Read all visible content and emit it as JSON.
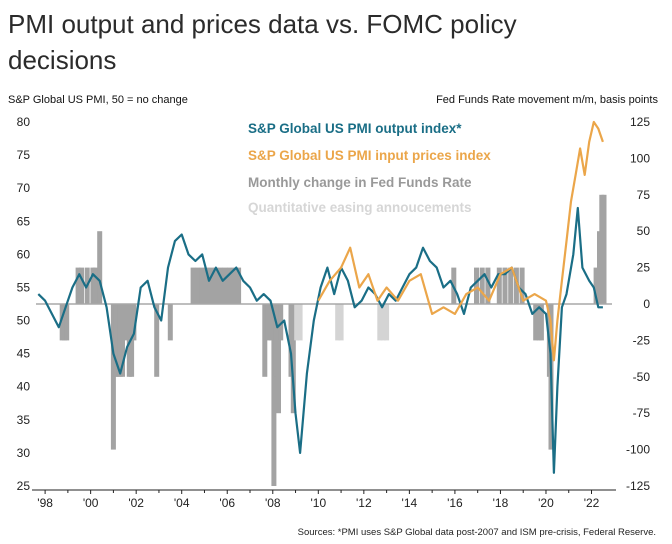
{
  "page": {
    "title": "PMI output and prices data vs. FOMC policy decisions",
    "left_axis_title": "S&P Global US PMI, 50 = no change",
    "right_axis_title": "Fed Funds Rate movement m/m, basis points",
    "source": "Sources: *PMI uses S&P Global data post-2007 and ISM pre-crisis, Federal Reserve."
  },
  "colors": {
    "output": "#1a6e86",
    "prices": "#eba64a",
    "fed": "#a3a3a3",
    "qe": "#d4d4d4",
    "zero_line": "#a8a8a8"
  },
  "chart_data": {
    "type": "line",
    "x_ticks": [
      "'98",
      "'00",
      "'02",
      "'04",
      "'06",
      "'08",
      "'10",
      "'12",
      "'14",
      "'16",
      "'18",
      "'20",
      "'22"
    ],
    "x_tick_years": [
      1998,
      2000,
      2002,
      2004,
      2006,
      2008,
      2010,
      2012,
      2014,
      2016,
      2018,
      2020,
      2022
    ],
    "xlim": [
      1997.6,
      2022.9
    ],
    "left_axis": {
      "ylim": [
        25,
        80
      ],
      "ticks": [
        "80",
        "75",
        "70",
        "65",
        "60",
        "55",
        "50",
        "45",
        "40",
        "35",
        "30",
        "25"
      ]
    },
    "right_axis": {
      "ylim": [
        -125,
        125
      ],
      "ticks": [
        "125",
        "100",
        "75",
        "50",
        "25",
        "0",
        "-25",
        "-50",
        "-75",
        "-100",
        "-125"
      ]
    },
    "series": [
      {
        "name": "S&P Global US PMI  output  index*",
        "axis": "left",
        "x": [
          1997.7,
          1998.0,
          1998.3,
          1998.6,
          1998.9,
          1999.2,
          1999.5,
          1999.8,
          2000.1,
          2000.4,
          2000.7,
          2001.0,
          2001.3,
          2001.6,
          2001.9,
          2002.2,
          2002.5,
          2002.8,
          2003.1,
          2003.4,
          2003.7,
          2004.0,
          2004.3,
          2004.6,
          2004.9,
          2005.2,
          2005.5,
          2005.8,
          2006.1,
          2006.4,
          2006.7,
          2007.0,
          2007.3,
          2007.6,
          2007.9,
          2008.2,
          2008.5,
          2008.8,
          2009.0,
          2009.2,
          2009.5,
          2009.8,
          2010.1,
          2010.4,
          2010.7,
          2011.0,
          2011.3,
          2011.6,
          2011.9,
          2012.2,
          2012.5,
          2012.8,
          2013.1,
          2013.4,
          2013.7,
          2014.0,
          2014.3,
          2014.6,
          2014.9,
          2015.2,
          2015.5,
          2015.8,
          2016.1,
          2016.4,
          2016.7,
          2017.0,
          2017.3,
          2017.6,
          2017.9,
          2018.2,
          2018.5,
          2018.8,
          2019.1,
          2019.4,
          2019.7,
          2020.0,
          2020.2,
          2020.35,
          2020.5,
          2020.7,
          2020.9,
          2021.2,
          2021.4,
          2021.6,
          2021.9,
          2022.1,
          2022.3,
          2022.5
        ],
        "values": [
          54,
          53,
          51,
          49,
          52,
          55,
          57,
          55,
          57,
          56,
          52,
          45,
          42,
          46,
          48,
          55,
          56,
          52,
          50,
          58,
          62,
          63,
          60,
          59,
          60,
          56,
          58,
          56,
          57,
          58,
          56,
          55,
          53,
          54,
          53,
          49,
          50,
          45,
          36,
          30,
          42,
          50,
          55,
          58,
          54,
          58,
          56,
          52,
          53,
          55,
          54,
          52,
          54,
          53,
          55,
          57,
          58,
          61,
          59,
          58,
          55,
          56,
          54,
          51,
          55,
          56,
          57,
          55,
          57,
          57,
          58,
          55,
          54,
          51,
          52,
          51,
          45,
          27,
          40,
          52,
          54,
          60,
          67,
          58,
          56,
          55,
          52,
          52
        ]
      },
      {
        "name": "S&P Global US PMI  input  prices index",
        "axis": "left",
        "x": [
          2010.0,
          2010.5,
          2011.0,
          2011.4,
          2011.8,
          2012.2,
          2012.6,
          2013.0,
          2013.5,
          2014.0,
          2014.5,
          2015.0,
          2015.5,
          2016.0,
          2016.5,
          2017.0,
          2017.5,
          2018.0,
          2018.5,
          2019.0,
          2019.5,
          2020.0,
          2020.2,
          2020.35,
          2020.5,
          2020.7,
          2020.9,
          2021.1,
          2021.3,
          2021.5,
          2021.7,
          2021.9,
          2022.1,
          2022.3,
          2022.5
        ],
        "values": [
          53,
          56,
          58,
          61,
          55,
          57,
          53,
          55,
          53,
          56,
          57,
          51,
          52,
          51,
          54,
          55,
          53,
          57,
          58,
          53,
          54,
          53,
          50,
          44,
          50,
          56,
          62,
          68,
          72,
          76,
          72,
          77,
          80,
          79,
          77
        ]
      }
    ],
    "bars": [
      {
        "name": "Monthly change in Fed Funds Rate",
        "axis": "right",
        "items": [
          {
            "x": 1998.75,
            "value": -25
          },
          {
            "x": 1998.85,
            "value": -25
          },
          {
            "x": 1998.95,
            "value": -25
          },
          {
            "x": 1999.45,
            "value": 25
          },
          {
            "x": 1999.6,
            "value": 25
          },
          {
            "x": 1999.85,
            "value": 25
          },
          {
            "x": 2000.1,
            "value": 25
          },
          {
            "x": 2000.2,
            "value": 25
          },
          {
            "x": 2000.4,
            "value": 50
          },
          {
            "x": 2001.0,
            "value": -100
          },
          {
            "x": 2001.1,
            "value": -50
          },
          {
            "x": 2001.2,
            "value": -50
          },
          {
            "x": 2001.3,
            "value": -50
          },
          {
            "x": 2001.4,
            "value": -50
          },
          {
            "x": 2001.5,
            "value": -25
          },
          {
            "x": 2001.7,
            "value": -50
          },
          {
            "x": 2001.8,
            "value": -50
          },
          {
            "x": 2001.9,
            "value": -25
          },
          {
            "x": 2002.9,
            "value": -50
          },
          {
            "x": 2003.5,
            "value": -25
          },
          {
            "x": 2004.5,
            "value": 25
          },
          {
            "x": 2004.7,
            "value": 25
          },
          {
            "x": 2004.9,
            "value": 25
          },
          {
            "x": 2005.1,
            "value": 25
          },
          {
            "x": 2005.3,
            "value": 25
          },
          {
            "x": 2005.5,
            "value": 25
          },
          {
            "x": 2005.7,
            "value": 25
          },
          {
            "x": 2005.9,
            "value": 25
          },
          {
            "x": 2006.1,
            "value": 25
          },
          {
            "x": 2006.3,
            "value": 25
          },
          {
            "x": 2006.5,
            "value": 25
          },
          {
            "x": 2007.65,
            "value": -50
          },
          {
            "x": 2007.8,
            "value": -25
          },
          {
            "x": 2007.95,
            "value": -25
          },
          {
            "x": 2008.05,
            "value": -125
          },
          {
            "x": 2008.15,
            "value": -50
          },
          {
            "x": 2008.25,
            "value": -75
          },
          {
            "x": 2008.35,
            "value": -25
          },
          {
            "x": 2008.8,
            "value": -50
          },
          {
            "x": 2008.9,
            "value": -75
          }
        ]
      },
      {
        "name": "Quantitative easing annoucements",
        "axis": "right",
        "items": [
          {
            "x": 2009.05,
            "value": -25
          },
          {
            "x": 2009.2,
            "value": -25
          },
          {
            "x": 2010.85,
            "value": -25
          },
          {
            "x": 2011.0,
            "value": -25
          },
          {
            "x": 2012.7,
            "value": -25
          },
          {
            "x": 2012.85,
            "value": -25
          },
          {
            "x": 2013.0,
            "value": -25
          }
        ]
      },
      {
        "name": "Monthly change in Fed Funds Rate",
        "axis": "right",
        "items": [
          {
            "x": 2015.95,
            "value": 25
          },
          {
            "x": 2016.95,
            "value": 25
          },
          {
            "x": 2017.2,
            "value": 25
          },
          {
            "x": 2017.45,
            "value": 25
          },
          {
            "x": 2017.95,
            "value": 25
          },
          {
            "x": 2018.2,
            "value": 25
          },
          {
            "x": 2018.45,
            "value": 25
          },
          {
            "x": 2018.7,
            "value": 25
          },
          {
            "x": 2018.95,
            "value": 25
          },
          {
            "x": 2019.55,
            "value": -25
          },
          {
            "x": 2019.7,
            "value": -25
          },
          {
            "x": 2019.8,
            "value": -25
          },
          {
            "x": 2020.15,
            "value": -50
          },
          {
            "x": 2020.22,
            "value": -100
          },
          {
            "x": 2022.2,
            "value": 25
          },
          {
            "x": 2022.35,
            "value": 50
          },
          {
            "x": 2022.45,
            "value": 75
          },
          {
            "x": 2022.55,
            "value": 75
          }
        ]
      }
    ],
    "legend": [
      {
        "label": "S&P Global US PMI  output  index*",
        "color_key": "output"
      },
      {
        "label": "S&P Global US PMI  input  prices index",
        "color_key": "prices"
      },
      {
        "label": "Monthly change in Fed Funds Rate",
        "color_key": "fed"
      },
      {
        "label": "Quantitative easing annoucements",
        "color_key": "qe"
      }
    ],
    "legend_position": "top-right",
    "grid": false
  }
}
